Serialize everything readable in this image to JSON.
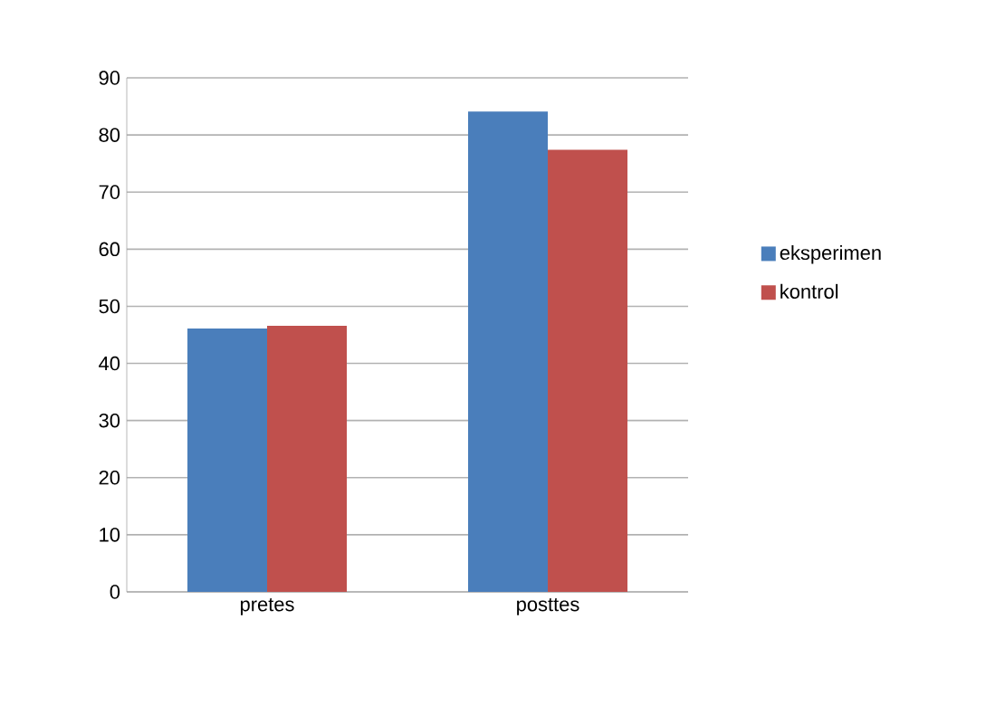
{
  "chart_data": {
    "type": "bar",
    "categories": [
      "pretes",
      "posttes"
    ],
    "series": [
      {
        "name": "eksperimen",
        "color": "#4a7ebb",
        "values": [
          46.1,
          84.1
        ]
      },
      {
        "name": "kontrol",
        "color": "#c0504d",
        "values": [
          46.6,
          77.4
        ]
      }
    ],
    "ylim": [
      0,
      90
    ],
    "yticks": [
      0,
      10,
      20,
      30,
      40,
      50,
      60,
      70,
      80,
      90
    ],
    "grid": "y",
    "legend": "right"
  }
}
